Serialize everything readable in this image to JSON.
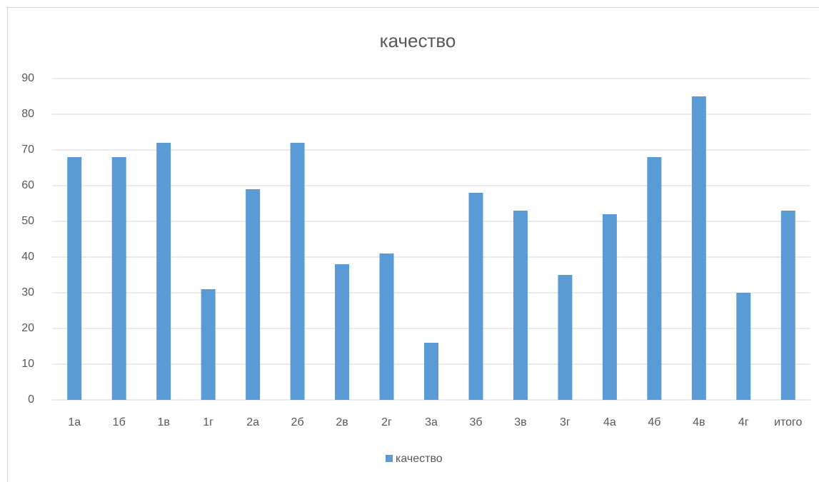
{
  "chart_data": {
    "type": "bar",
    "title": "качество",
    "categories": [
      "1а",
      "1б",
      "1в",
      "1г",
      "2а",
      "2б",
      "2в",
      "2г",
      "3а",
      "3б",
      "3в",
      "3г",
      "4а",
      "4б",
      "4в",
      "4г",
      "итого"
    ],
    "series": [
      {
        "name": "качество",
        "color": "#5b9bd5",
        "values": [
          68,
          68,
          72,
          31,
          59,
          72,
          38,
          41,
          16,
          58,
          53,
          35,
          52,
          68,
          85,
          30,
          53
        ]
      }
    ],
    "ylim": [
      0,
      90
    ],
    "yticks": [
      0,
      10,
      20,
      30,
      40,
      50,
      60,
      70,
      80,
      90
    ],
    "grid": true,
    "legend": "bottom"
  }
}
